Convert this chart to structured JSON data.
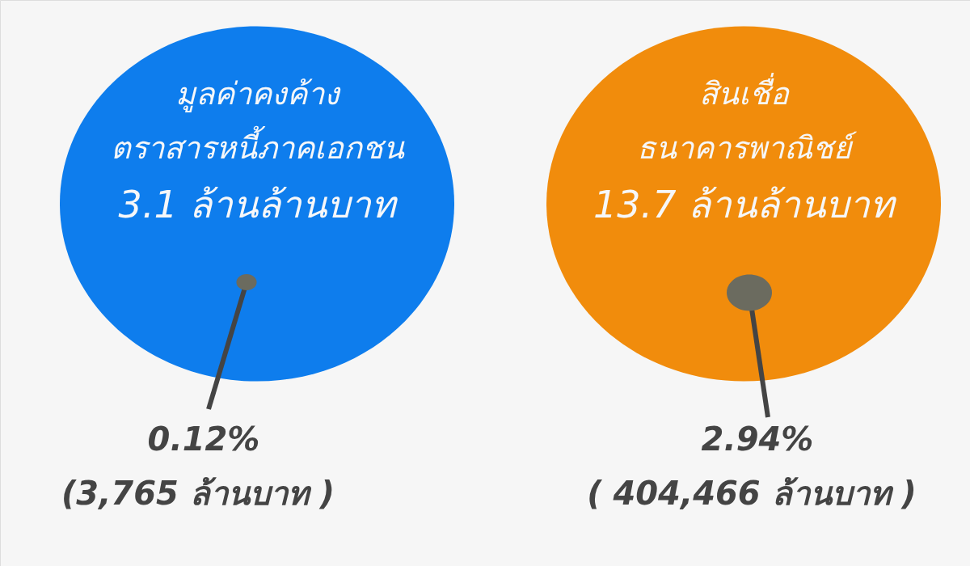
{
  "chart_data": {
    "type": "other",
    "categories": [
      "มูลค่าคงค้าง ตราสารหนี้ภาคเอกชน",
      "สินเชื่อ ธนาคารพาณิชย์"
    ],
    "series": [
      {
        "colors": [
          "#0e7ded",
          "#f18c0c"
        ],
        "values": [
          3.1,
          13.7
        ],
        "value_labels": [
          "3.1 ล้านล้านบาท",
          "13.7 ล้านล้านบาท"
        ]
      },
      {
        "color": "#6b6b5f",
        "values": [
          0.12,
          2.94
        ],
        "value_labels": [
          "0.12%",
          "2.94%"
        ]
      },
      {
        "values": [
          3765,
          404466
        ],
        "value_labels": [
          "(3,765 ล้านบาท )",
          "( 404,466   ล้านบาท )"
        ]
      }
    ]
  }
}
